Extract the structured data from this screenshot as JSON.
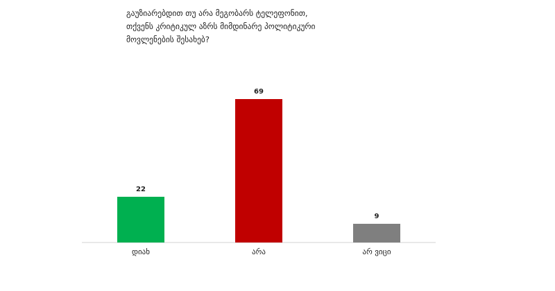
{
  "chart_data": {
    "type": "bar",
    "title": "გაუზიარებდით თუ არა მეგობარს ტელეფონით, თქვენს კრიტიკულ აზრს მიმდინარე პოლიტიკური მოვლენების შესახებ?",
    "categories": [
      "დიახ",
      "არა",
      "არ ვიცი"
    ],
    "values": [
      22,
      69,
      9
    ],
    "colors": [
      "#00b050",
      "#c00000",
      "#7f7f7f"
    ]
  }
}
